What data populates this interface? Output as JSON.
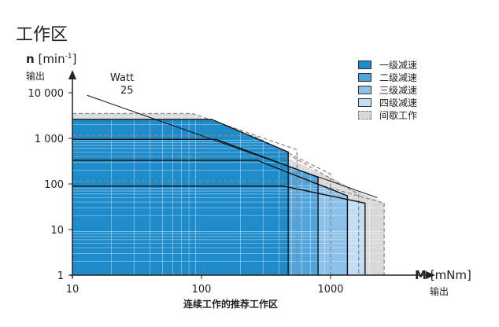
{
  "page": {
    "title": "工作区"
  },
  "chart_data": {
    "type": "area",
    "title": "工作区",
    "ylabel": {
      "symbol": "n",
      "unit": "[min",
      "exp": "-1",
      "close": "]",
      "sub": "输出"
    },
    "xlabel": {
      "symbol": "M",
      "unit": "[mNm]",
      "sub": "输出",
      "caption": "连续工作的推荐工作区"
    },
    "x_scale": "log",
    "y_scale": "log",
    "xlim": [
      10,
      3000
    ],
    "ylim": [
      1,
      12000
    ],
    "xticks": [
      {
        "v": 10,
        "label": "10"
      },
      {
        "v": 100,
        "label": "100"
      },
      {
        "v": 1000,
        "label": "1000"
      }
    ],
    "yticks": [
      {
        "v": 1,
        "label": "1"
      },
      {
        "v": 10,
        "label": "10"
      },
      {
        "v": 100,
        "label": "100"
      },
      {
        "v": 1000,
        "label": "1 000"
      },
      {
        "v": 10000,
        "label": "10 000"
      }
    ],
    "grid": true,
    "power_line": {
      "label": "Watt",
      "value": "25",
      "points": [
        [
          13,
          8800
        ],
        [
          2300,
          50
        ]
      ]
    },
    "series": [
      {
        "name": "一级减速",
        "color": "#1e8bcb",
        "polygon": [
          [
            10,
            2600
          ],
          [
            120,
            2600
          ],
          [
            470,
            500
          ],
          [
            470,
            1
          ]
        ]
      },
      {
        "name": "二级减速",
        "color": "#52a5dc",
        "polygon": [
          [
            10,
            950
          ],
          [
            130,
            950
          ],
          [
            800,
            140
          ],
          [
            800,
            1
          ]
        ]
      },
      {
        "name": "三级减速",
        "color": "#8cc2ea",
        "polygon": [
          [
            10,
            330
          ],
          [
            270,
            330
          ],
          [
            1350,
            55
          ],
          [
            1350,
            1
          ]
        ]
      },
      {
        "name": "四级减速",
        "color": "#c4ddf5",
        "polygon": [
          [
            10,
            90
          ],
          [
            430,
            90
          ],
          [
            1850,
            38
          ],
          [
            1850,
            1
          ]
        ]
      },
      {
        "name": "间歇工作",
        "color": "#d9d9d9",
        "polygon": [
          [
            10,
            3500
          ],
          [
            85,
            3500
          ],
          [
            2600,
            38
          ],
          [
            2600,
            1
          ],
          [
            10,
            1
          ]
        ]
      }
    ],
    "intermittent_outlines": [
      [
        [
          10,
          3500
        ],
        [
          85,
          3500
        ],
        [
          550,
          560
        ],
        [
          550,
          1
        ]
      ],
      [
        [
          10,
          1150
        ],
        [
          250,
          1150
        ],
        [
          1000,
          165
        ],
        [
          1000,
          1
        ]
      ],
      [
        [
          10,
          400
        ],
        [
          500,
          400
        ],
        [
          1650,
          60
        ],
        [
          1650,
          1
        ]
      ],
      [
        [
          10,
          115
        ],
        [
          650,
          115
        ],
        [
          2600,
          38
        ],
        [
          2600,
          1
        ]
      ]
    ]
  },
  "legend": [
    {
      "label": "一级减速",
      "color": "#1e8bcb",
      "style": "solid"
    },
    {
      "label": "二级减速",
      "color": "#52a5dc",
      "style": "solid"
    },
    {
      "label": "三级减速",
      "color": "#8cc2ea",
      "style": "solid"
    },
    {
      "label": "四级减速",
      "color": "#c4ddf5",
      "style": "solid"
    },
    {
      "label": "间歇工作",
      "color": "#d9d9d9",
      "style": "dashed"
    }
  ]
}
